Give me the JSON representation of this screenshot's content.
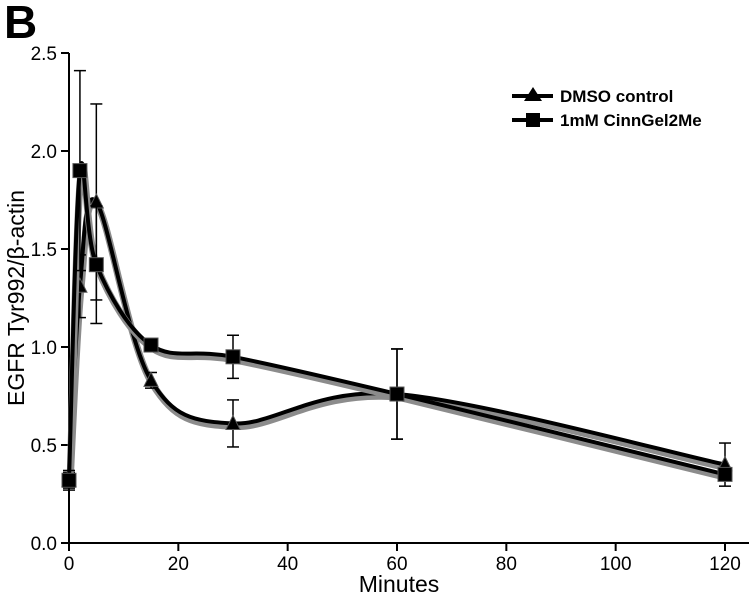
{
  "panel_label": "B",
  "chart_data": {
    "type": "line",
    "title": "",
    "xlabel": "Minutes",
    "ylabel": "EGFR Tyr992/β-actin",
    "xlim": [
      0,
      120
    ],
    "ylim": [
      0,
      2.5
    ],
    "x_ticks": [
      0,
      20,
      40,
      60,
      80,
      100,
      120
    ],
    "y_ticks": [
      0.0,
      0.5,
      1.0,
      1.5,
      2.0,
      2.5
    ],
    "x_tick_labels": [
      "0",
      "20",
      "40",
      "60",
      "80",
      "100",
      "120"
    ],
    "y_tick_labels": [
      "0.0",
      "0.5",
      "1.0",
      "1.5",
      "2.0",
      "2.5"
    ],
    "grid": false,
    "legend_position": "top-right",
    "series": [
      {
        "name": "DMSO control",
        "marker": "triangle",
        "color": "#000000",
        "x": [
          0,
          2,
          5,
          15,
          30,
          60,
          120
        ],
        "y": [
          0.32,
          1.31,
          1.74,
          0.83,
          0.61,
          0.76,
          0.4
        ],
        "err": [
          0.04,
          0.16,
          0.5,
          0.04,
          0.12,
          0.23,
          0.11
        ]
      },
      {
        "name": "1mM CinnGel2Me",
        "marker": "square",
        "color": "#000000",
        "x": [
          0,
          2,
          5,
          15,
          30,
          60,
          120
        ],
        "y": [
          0.32,
          1.9,
          1.42,
          1.01,
          0.95,
          0.76,
          0.35
        ],
        "err": [
          0.05,
          0.51,
          0.3,
          0.03,
          0.11,
          0.23,
          0.03
        ]
      }
    ]
  }
}
